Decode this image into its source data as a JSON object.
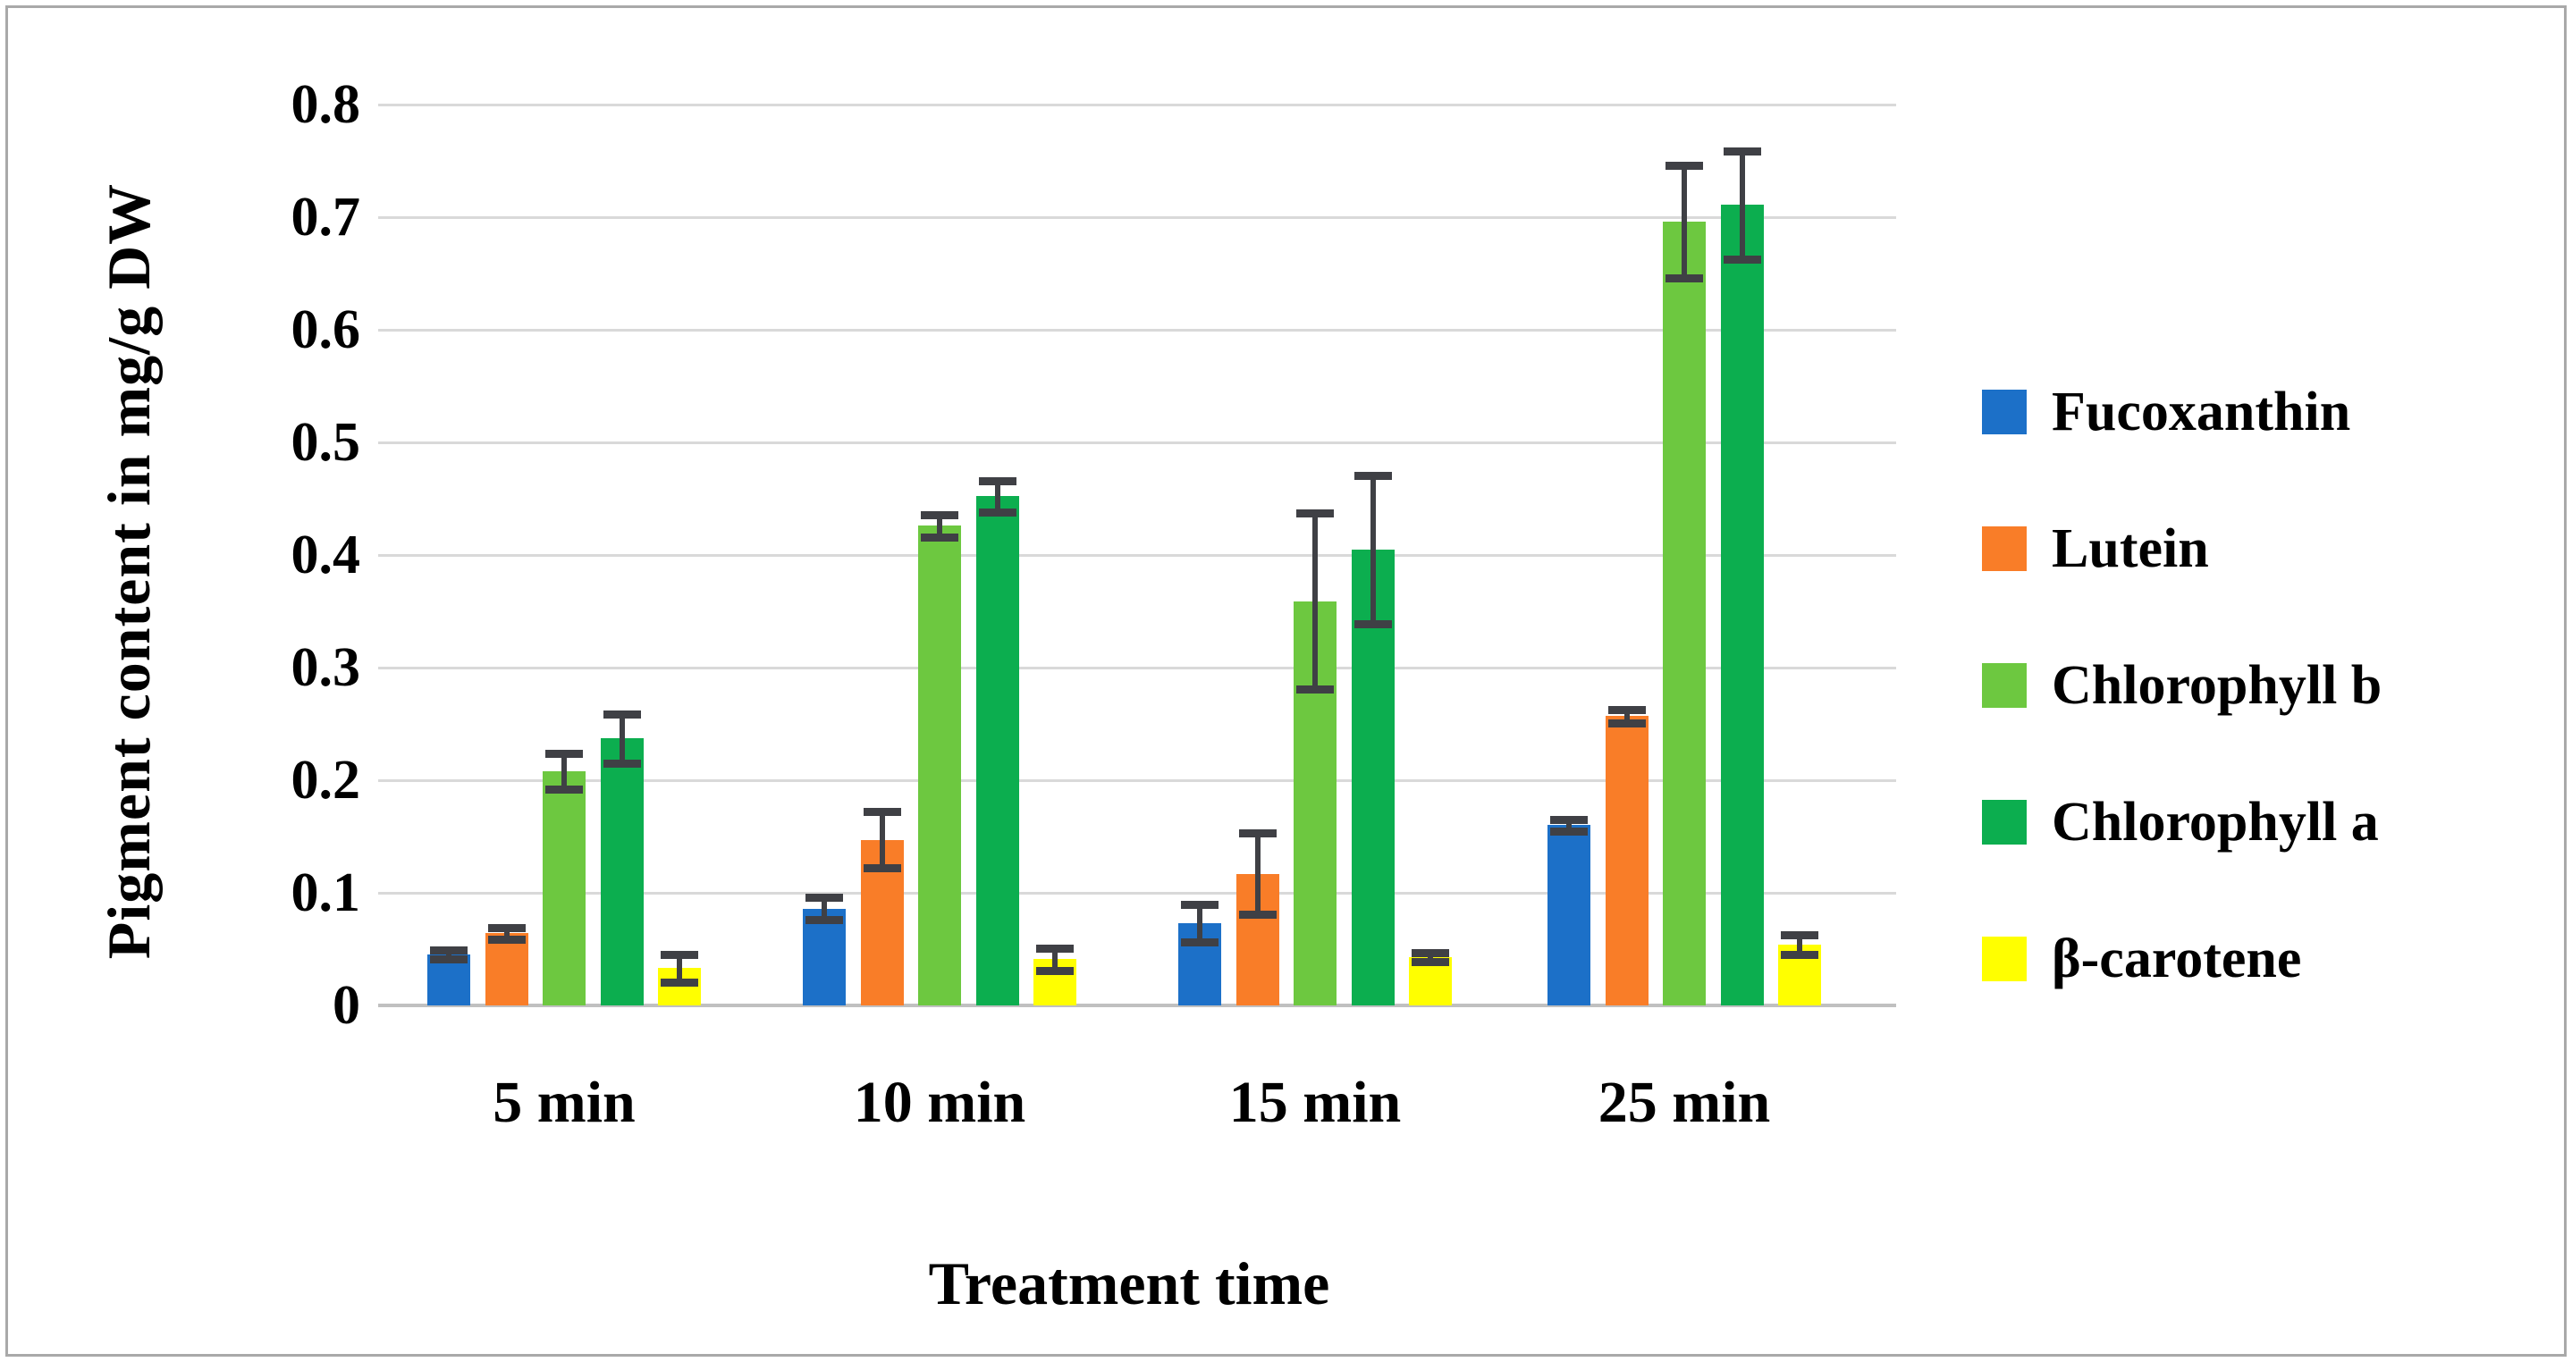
{
  "figure": {
    "background": "#ffffff",
    "border_color": "#a9a9a9"
  },
  "chart_data": {
    "type": "bar",
    "title": "",
    "xlabel": "Treatment time",
    "ylabel": "Pigment content in mg/g DW",
    "categories": [
      "5 min",
      "10 min",
      "15 min",
      "25 min"
    ],
    "series": [
      {
        "name": "Fucoxanthin",
        "color": "#1c70c8",
        "values": [
          0.045,
          0.086,
          0.073,
          0.16
        ],
        "errors": [
          0.004,
          0.01,
          0.017,
          0.005
        ]
      },
      {
        "name": "Lutein",
        "color": "#f97d28",
        "values": [
          0.064,
          0.147,
          0.117,
          0.257
        ],
        "errors": [
          0.005,
          0.025,
          0.036,
          0.006
        ]
      },
      {
        "name": "Chlorophyll b",
        "color": "#6dc840",
        "values": [
          0.208,
          0.426,
          0.359,
          0.696
        ],
        "errors": [
          0.016,
          0.01,
          0.078,
          0.05
        ]
      },
      {
        "name": "Chlorophyll a",
        "color": "#0cae4f",
        "values": [
          0.237,
          0.452,
          0.405,
          0.711
        ],
        "errors": [
          0.022,
          0.014,
          0.066,
          0.048
        ]
      },
      {
        "name": "β-carotene",
        "color": "#ffff00",
        "values": [
          0.033,
          0.041,
          0.043,
          0.054
        ],
        "errors": [
          0.012,
          0.01,
          0.004,
          0.009
        ]
      }
    ],
    "y_axis": {
      "min": 0,
      "max": 0.8,
      "step": 0.1,
      "tick_labels": [
        "0",
        "0.1",
        "0.2",
        "0.3",
        "0.4",
        "0.5",
        "0.6",
        "0.7",
        "0.8"
      ]
    },
    "grid": true,
    "legend_position": "right",
    "error_bars": true,
    "gridline_color": "#d9d9d9",
    "axis_line_color": "#c0c0c0",
    "error_bar_color": "#3f4045",
    "text_color": "#000000"
  }
}
